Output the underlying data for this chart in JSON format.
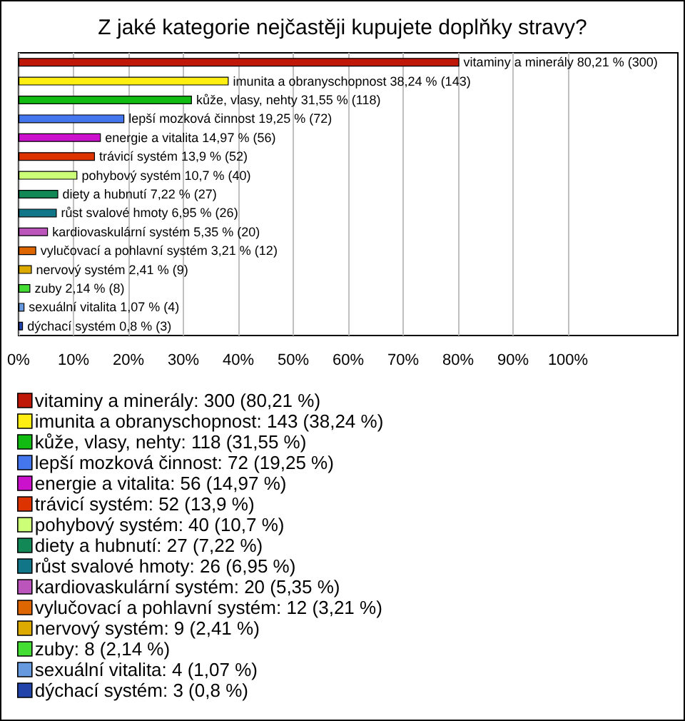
{
  "chart_data": {
    "type": "bar",
    "orientation": "horizontal",
    "title": "Z jaké kategorie nejčastěji kupujete doplňky stravy?",
    "categories": [
      null,
      null,
      null,
      null,
      null,
      null,
      null,
      null,
      null,
      null,
      null,
      null,
      null,
      null,
      null
    ],
    "tick_labels": "x",
    "grid": "x",
    "legend": "bottom",
    "xlim": [
      0,
      120
    ],
    "xticks": [
      {
        "value": 0,
        "label": "0%"
      },
      {
        "value": 10,
        "label": "10%"
      },
      {
        "value": 20,
        "label": "20%"
      },
      {
        "value": 30,
        "label": "30%"
      },
      {
        "value": 40,
        "label": "40%"
      },
      {
        "value": 50,
        "label": "50%"
      },
      {
        "value": 60,
        "label": "60%"
      },
      {
        "value": 70,
        "label": "70%"
      },
      {
        "value": 80,
        "label": "80%"
      },
      {
        "value": 90,
        "label": "90%"
      },
      {
        "value": 100,
        "label": "100%"
      }
    ],
    "series": [
      {
        "name": "vitaminy a minerály: 300 (80,21 %)",
        "color": "#c01808",
        "values": [
          80.21,
          null,
          null,
          null,
          null,
          null,
          null,
          null,
          null,
          null,
          null,
          null,
          null,
          null,
          null
        ],
        "value_labels": [
          "vitaminy a minerály 80,21 % (300)",
          null,
          null,
          null,
          null,
          null,
          null,
          null,
          null,
          null,
          null,
          null,
          null,
          null,
          null
        ]
      },
      {
        "name": "imunita a obranyschopnost: 143 (38,24 %)",
        "color": "#ffee11",
        "values": [
          null,
          38.24,
          null,
          null,
          null,
          null,
          null,
          null,
          null,
          null,
          null,
          null,
          null,
          null,
          null
        ],
        "value_labels": [
          null,
          "imunita a obranyschopnost 38,24 % (143)",
          null,
          null,
          null,
          null,
          null,
          null,
          null,
          null,
          null,
          null,
          null,
          null,
          null
        ]
      },
      {
        "name": "kůže, vlasy, nehty: 118 (31,55 %)",
        "color": "#11bb11",
        "values": [
          null,
          null,
          31.55,
          null,
          null,
          null,
          null,
          null,
          null,
          null,
          null,
          null,
          null,
          null,
          null
        ],
        "value_labels": [
          null,
          null,
          "kůže, vlasy, nehty 31,55 % (118)",
          null,
          null,
          null,
          null,
          null,
          null,
          null,
          null,
          null,
          null,
          null,
          null
        ]
      },
      {
        "name": "lepší mozková činnost: 72 (19,25 %)",
        "color": "#4477ee",
        "values": [
          null,
          null,
          null,
          19.25,
          null,
          null,
          null,
          null,
          null,
          null,
          null,
          null,
          null,
          null,
          null
        ],
        "value_labels": [
          null,
          null,
          null,
          "lepší mozková činnost 19,25 % (72)",
          null,
          null,
          null,
          null,
          null,
          null,
          null,
          null,
          null,
          null,
          null
        ]
      },
      {
        "name": "energie a vitalita: 56 (14,97 %)",
        "color": "#cc11cc",
        "values": [
          null,
          null,
          null,
          null,
          14.97,
          null,
          null,
          null,
          null,
          null,
          null,
          null,
          null,
          null,
          null
        ],
        "value_labels": [
          null,
          null,
          null,
          null,
          "energie a vitalita 14,97 % (56)",
          null,
          null,
          null,
          null,
          null,
          null,
          null,
          null,
          null,
          null
        ]
      },
      {
        "name": "trávicí systém: 52 (13,9 %)",
        "color": "#dd3300",
        "values": [
          null,
          null,
          null,
          null,
          null,
          13.9,
          null,
          null,
          null,
          null,
          null,
          null,
          null,
          null,
          null
        ],
        "value_labels": [
          null,
          null,
          null,
          null,
          null,
          "trávicí systém 13,9 % (52)",
          null,
          null,
          null,
          null,
          null,
          null,
          null,
          null,
          null
        ]
      },
      {
        "name": "pohybový systém: 40 (10,7 %)",
        "color": "#ccff77",
        "values": [
          null,
          null,
          null,
          null,
          null,
          null,
          10.7,
          null,
          null,
          null,
          null,
          null,
          null,
          null,
          null
        ],
        "value_labels": [
          null,
          null,
          null,
          null,
          null,
          null,
          "pohybový systém 10,7 % (40)",
          null,
          null,
          null,
          null,
          null,
          null,
          null,
          null
        ]
      },
      {
        "name": "diety a hubnutí: 27 (7,22 %)",
        "color": "#118855",
        "values": [
          null,
          null,
          null,
          null,
          null,
          null,
          null,
          7.22,
          null,
          null,
          null,
          null,
          null,
          null,
          null
        ],
        "value_labels": [
          null,
          null,
          null,
          null,
          null,
          null,
          null,
          "diety a hubnutí 7,22 % (27)",
          null,
          null,
          null,
          null,
          null,
          null,
          null
        ]
      },
      {
        "name": "růst svalové hmoty: 26 (6,95 %)",
        "color": "#117788",
        "values": [
          null,
          null,
          null,
          null,
          null,
          null,
          null,
          null,
          6.95,
          null,
          null,
          null,
          null,
          null,
          null
        ],
        "value_labels": [
          null,
          null,
          null,
          null,
          null,
          null,
          null,
          null,
          "růst svalové hmoty 6,95 % (26)",
          null,
          null,
          null,
          null,
          null,
          null
        ]
      },
      {
        "name": "kardiovaskulární systém: 20 (5,35 %)",
        "color": "#bb55bb",
        "values": [
          null,
          null,
          null,
          null,
          null,
          null,
          null,
          null,
          null,
          5.35,
          null,
          null,
          null,
          null,
          null
        ],
        "value_labels": [
          null,
          null,
          null,
          null,
          null,
          null,
          null,
          null,
          null,
          "kardiovaskulární systém 5,35 % (20)",
          null,
          null,
          null,
          null,
          null
        ]
      },
      {
        "name": "vylučovací a pohlavní systém: 12 (3,21 %)",
        "color": "#dd6600",
        "values": [
          null,
          null,
          null,
          null,
          null,
          null,
          null,
          null,
          null,
          null,
          3.21,
          null,
          null,
          null,
          null
        ],
        "value_labels": [
          null,
          null,
          null,
          null,
          null,
          null,
          null,
          null,
          null,
          null,
          "vylučovací a pohlavní systém 3,21 % (12)",
          null,
          null,
          null,
          null
        ]
      },
      {
        "name": "nervový systém: 9 (2,41 %)",
        "color": "#ddaa00",
        "values": [
          null,
          null,
          null,
          null,
          null,
          null,
          null,
          null,
          null,
          null,
          null,
          2.41,
          null,
          null,
          null
        ],
        "value_labels": [
          null,
          null,
          null,
          null,
          null,
          null,
          null,
          null,
          null,
          null,
          null,
          "nervový systém 2,41 % (9)",
          null,
          null,
          null
        ]
      },
      {
        "name": "zuby: 8 (2,14 %)",
        "color": "#44dd33",
        "values": [
          null,
          null,
          null,
          null,
          null,
          null,
          null,
          null,
          null,
          null,
          null,
          null,
          2.14,
          null,
          null
        ],
        "value_labels": [
          null,
          null,
          null,
          null,
          null,
          null,
          null,
          null,
          null,
          null,
          null,
          null,
          "zuby 2,14 % (8)",
          null,
          null
        ]
      },
      {
        "name": "sexuální vitalita: 4 (1,07 %)",
        "color": "#6699dd",
        "values": [
          null,
          null,
          null,
          null,
          null,
          null,
          null,
          null,
          null,
          null,
          null,
          null,
          null,
          1.07,
          null
        ],
        "value_labels": [
          null,
          null,
          null,
          null,
          null,
          null,
          null,
          null,
          null,
          null,
          null,
          null,
          null,
          "sexuální vitalita 1,07 % (4)",
          null
        ]
      },
      {
        "name": "dýchací systém: 3 (0,8 %)",
        "color": "#2244aa",
        "values": [
          null,
          null,
          null,
          null,
          null,
          null,
          null,
          null,
          null,
          null,
          null,
          null,
          null,
          null,
          0.8
        ],
        "value_labels": [
          null,
          null,
          null,
          null,
          null,
          null,
          null,
          null,
          null,
          null,
          null,
          null,
          null,
          null,
          "dýchací systém 0,8 % (3)"
        ]
      }
    ]
  }
}
